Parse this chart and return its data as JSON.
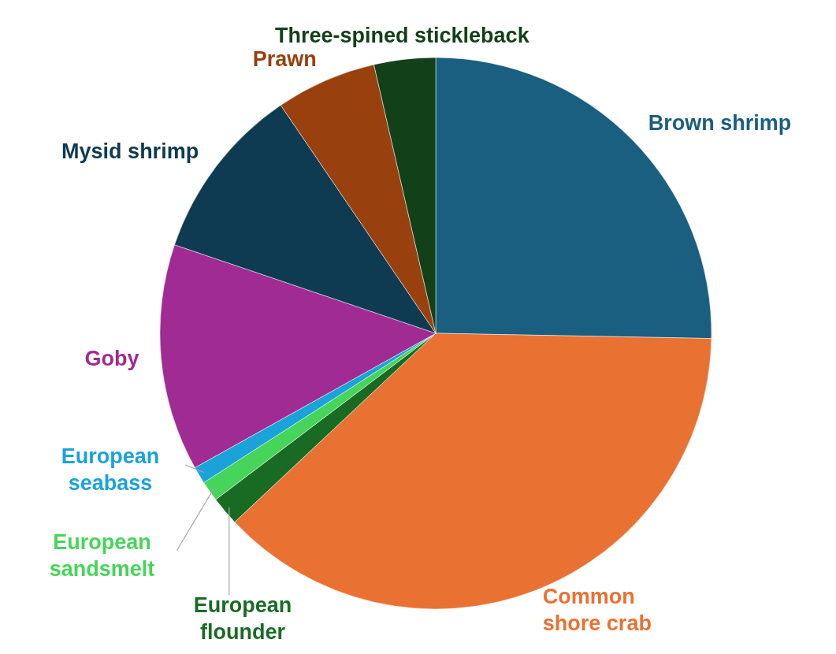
{
  "chart_data": {
    "type": "pie",
    "categories": [
      "Brown shrimp",
      "Common shore crab",
      "European flounder",
      "European sandsmelt",
      "European seabass",
      "Goby",
      "Mysid shrimp",
      "Prawn",
      "Three-spined stickleback"
    ],
    "values": [
      25.3,
      37.7,
      1.7,
      1.2,
      1.0,
      13.3,
      10.3,
      5.9,
      3.6
    ],
    "colors": [
      "#1a5e80",
      "#e97132",
      "#196b24",
      "#47d45a",
      "#1aa3d9",
      "#a02b93",
      "#0e3a52",
      "#98410f",
      "#124018"
    ]
  }
}
